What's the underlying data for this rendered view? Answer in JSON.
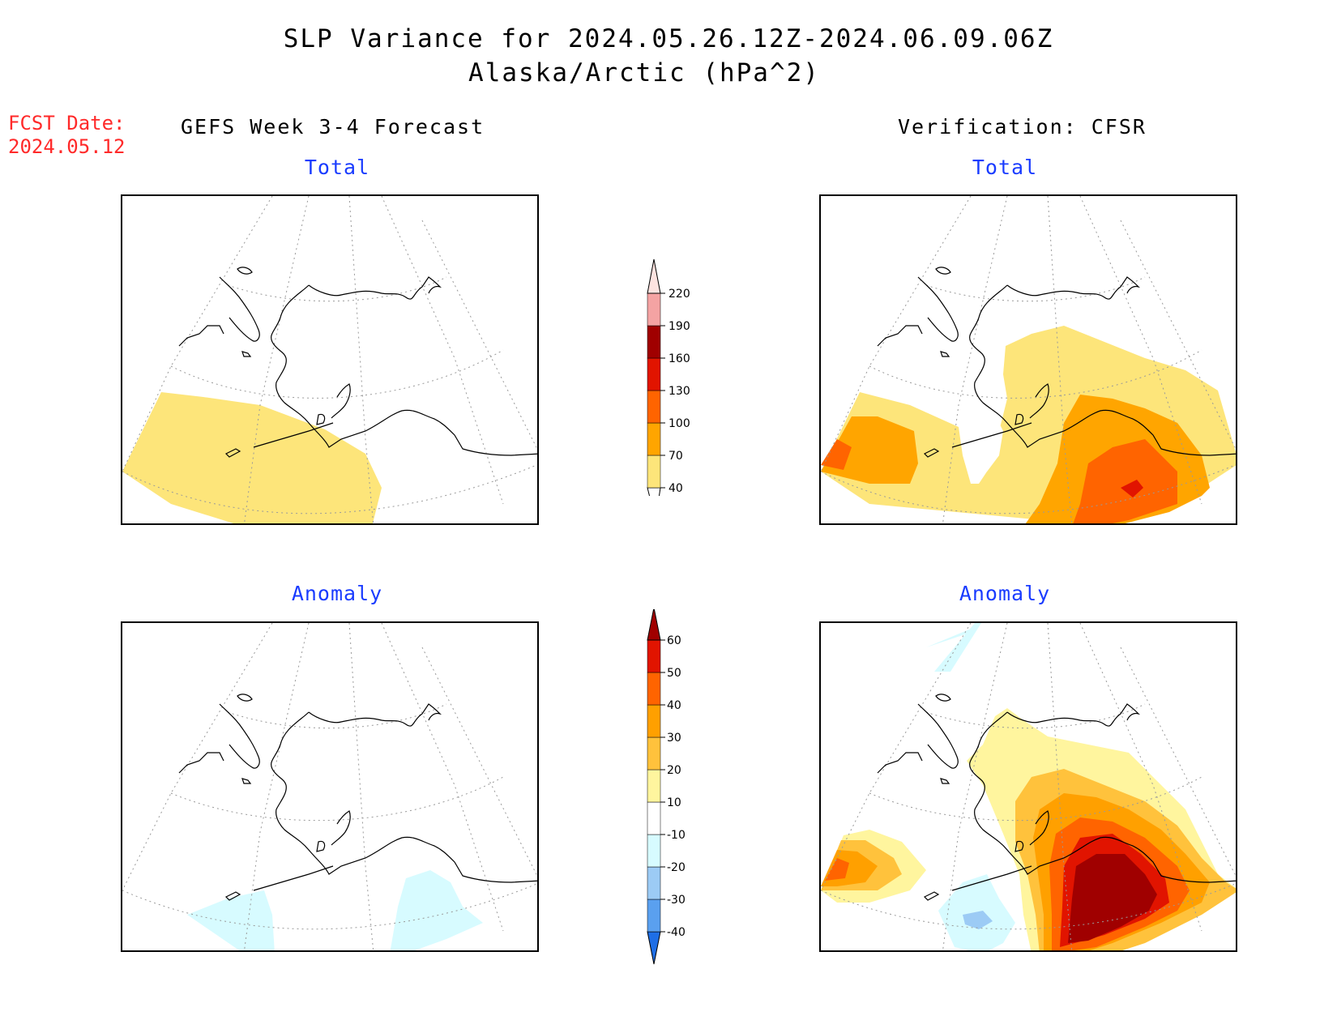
{
  "title": {
    "line1": "SLP Variance for 2024.05.26.12Z-2024.06.09.06Z",
    "line2": "Alaska/Arctic (hPa^2)"
  },
  "fcst_date": {
    "label": "FCST Date:",
    "value": "2024.05.12"
  },
  "columns": {
    "left": "GEFS Week 3-4 Forecast",
    "right": "Verification: CFSR"
  },
  "panels": {
    "top_left": "Total",
    "top_right": "Total",
    "bottom_left": "Anomaly",
    "bottom_right": "Anomaly"
  },
  "colorbars": {
    "total": {
      "labels": [
        "40",
        "70",
        "100",
        "130",
        "160",
        "190",
        "220"
      ],
      "colors": [
        "#fde57a",
        "#ffa500",
        "#ff6400",
        "#e11400",
        "#a00000",
        "#f4a3a3",
        "#fde3e0"
      ]
    },
    "anomaly": {
      "labels": [
        "-40",
        "-30",
        "-20",
        "-10",
        "10",
        "20",
        "30",
        "40",
        "50",
        "60"
      ],
      "colors": [
        "#1e6ee6",
        "#5aa0ef",
        "#9ccbf5",
        "#d7fbff",
        "#ffffff",
        "#fff59e",
        "#ffc23c",
        "#ffa000",
        "#ff6400",
        "#e11400",
        "#a00000"
      ]
    }
  },
  "colors": {
    "fill_40_70": "#fde57a",
    "fill_70_100": "#ffa500",
    "fill_100_130": "#ff6400",
    "fill_130_160": "#e11400",
    "anom_10_20": "#fff59e",
    "anom_20_30": "#ffc23c",
    "anom_30_40": "#ffa000",
    "anom_40_50": "#ff6400",
    "anom_50_60": "#e11400",
    "anom_gt60": "#a00000",
    "anom_m10_m20": "#d7fbff",
    "anom_m20_m30": "#9ccbf5"
  }
}
